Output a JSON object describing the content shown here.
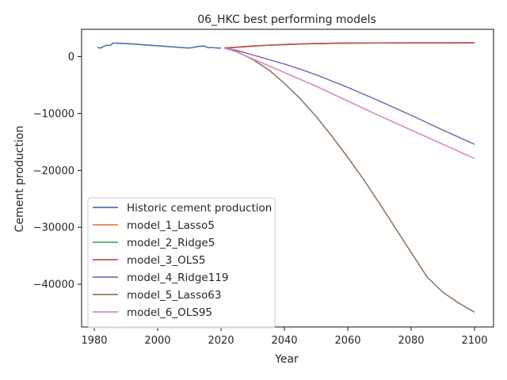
{
  "chart_data": {
    "type": "line",
    "title": "06_HKC best performing models",
    "xlabel": "Year",
    "ylabel": "Cement production",
    "xlim": [
      1976,
      2106
    ],
    "ylim": [
      -47500,
      4800
    ],
    "xticks": [
      1980,
      2000,
      2020,
      2040,
      2060,
      2080,
      2100
    ],
    "xtick_labels": [
      "1980",
      "2000",
      "2020",
      "2040",
      "2060",
      "2080",
      "2100"
    ],
    "yticks": [
      0,
      -10000,
      -20000,
      -30000,
      -40000
    ],
    "ytick_labels": [
      "0",
      "−10000",
      "−20000",
      "−30000",
      "−40000"
    ],
    "grid": false,
    "legend_position": "lower-left",
    "series": [
      {
        "name": "Historic cement production",
        "color": "#4c72b0",
        "x": [
          1981,
          1982,
          1983,
          1984,
          1985,
          1986,
          1987,
          1990,
          1995,
          2000,
          2005,
          2010,
          2011,
          2012,
          2013,
          2014,
          2015,
          2016,
          2017,
          2018,
          2019,
          2020
        ],
        "y": [
          1600,
          1500,
          1800,
          2000,
          1950,
          2400,
          2350,
          2300,
          2100,
          1900,
          1700,
          1500,
          1600,
          1700,
          1800,
          1850,
          1800,
          1550,
          1600,
          1550,
          1500,
          1500
        ]
      },
      {
        "name": "model_1_Lasso5",
        "color": "#dd8452",
        "x": [
          2021,
          2025,
          2030,
          2035,
          2040,
          2045,
          2050,
          2055,
          2060,
          2070,
          2080,
          2090,
          2100
        ],
        "y": [
          1500,
          1650,
          1850,
          2000,
          2120,
          2220,
          2290,
          2340,
          2370,
          2400,
          2410,
          2415,
          2420
        ]
      },
      {
        "name": "model_2_Ridge5",
        "color": "#55a868",
        "x": [
          2021,
          2025,
          2030,
          2035,
          2040,
          2045,
          2050,
          2055,
          2060,
          2070,
          2080,
          2090,
          2100
        ],
        "y": [
          1500,
          1650,
          1850,
          2000,
          2120,
          2220,
          2290,
          2340,
          2370,
          2400,
          2410,
          2415,
          2420
        ]
      },
      {
        "name": "model_3_OLS5",
        "color": "#c44e52",
        "x": [
          2021,
          2025,
          2030,
          2035,
          2040,
          2045,
          2050,
          2055,
          2060,
          2070,
          2080,
          2090,
          2100
        ],
        "y": [
          1500,
          1650,
          1850,
          2000,
          2120,
          2220,
          2290,
          2340,
          2370,
          2400,
          2410,
          2415,
          2420
        ]
      },
      {
        "name": "model_4_Ridge119",
        "color": "#8172b3",
        "x": [
          2021,
          2025,
          2030,
          2035,
          2040,
          2045,
          2050,
          2055,
          2060,
          2070,
          2080,
          2090,
          2100
        ],
        "y": [
          1500,
          1100,
          300,
          -500,
          -1300,
          -2200,
          -3200,
          -4300,
          -5400,
          -7800,
          -10300,
          -12900,
          -15400
        ]
      },
      {
        "name": "model_5_Lasso63",
        "color": "#937860",
        "x": [
          2021,
          2025,
          2030,
          2035,
          2040,
          2045,
          2050,
          2055,
          2060,
          2065,
          2070,
          2075,
          2080,
          2085,
          2090,
          2095,
          2100
        ],
        "y": [
          1500,
          900,
          -500,
          -2300,
          -4700,
          -7400,
          -10500,
          -14000,
          -17700,
          -21600,
          -25800,
          -30100,
          -34400,
          -38700,
          -41400,
          -43300,
          -44900
        ]
      },
      {
        "name": "model_6_OLS95",
        "color": "#da8bc3",
        "x": [
          2021,
          2025,
          2030,
          2035,
          2040,
          2045,
          2050,
          2055,
          2060,
          2070,
          2080,
          2090,
          2100
        ],
        "y": [
          1500,
          800,
          -400,
          -1600,
          -2800,
          -4000,
          -5200,
          -6500,
          -7800,
          -10400,
          -12900,
          -15400,
          -17900
        ]
      }
    ]
  }
}
